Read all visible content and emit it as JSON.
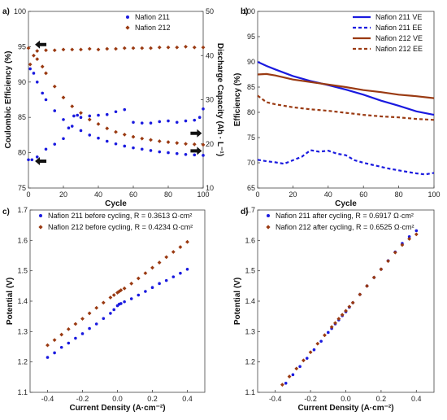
{
  "chart_data": [
    {
      "panel": "a)",
      "type": "scatter",
      "xlabel": "Cycle",
      "ylabel": "Coulombic Efficiency (%)",
      "y2label": "Discharge Capacity (Ah · L⁻¹)",
      "xlim": [
        0,
        100
      ],
      "ylim": [
        75,
        100
      ],
      "y2lim": [
        10,
        50
      ],
      "xticks": [
        "0",
        "20",
        "40",
        "60",
        "80",
        "100"
      ],
      "yticks": [
        "75",
        "80",
        "85",
        "90",
        "95",
        "100"
      ],
      "y2ticks": [
        "10",
        "20",
        "30",
        "40",
        "50"
      ],
      "legend_position": "top-right",
      "colors": {
        "Nafion 211": "#1a1adf",
        "Nafion 212": "#9a3a12"
      },
      "series": [
        {
          "name": "Nafion 211",
          "axis": "left",
          "x": [
            0,
            2,
            5,
            10,
            15,
            20,
            23,
            26,
            28,
            30,
            35,
            40,
            45,
            50,
            55,
            60,
            65,
            70,
            75,
            80,
            85,
            90,
            95,
            98,
            100
          ],
          "values": [
            79.0,
            79.0,
            79.4,
            80.5,
            81.2,
            82.0,
            83.5,
            85.2,
            85.3,
            85.0,
            85.2,
            85.3,
            85.4,
            85.8,
            86.1,
            84.3,
            84.2,
            84.2,
            84.4,
            84.5,
            84.3,
            84.5,
            84.6,
            85.0,
            86.2
          ]
        },
        {
          "name": "Nafion 211",
          "axis": "right",
          "x": [
            1,
            3,
            5,
            8,
            10,
            15,
            20,
            25,
            30,
            35,
            40,
            45,
            50,
            55,
            60,
            65,
            70,
            75,
            80,
            85,
            90,
            95,
            100
          ],
          "values": [
            37.0,
            36.0,
            34.0,
            31.5,
            30.0,
            27.5,
            25.5,
            24.0,
            23.0,
            22.0,
            21.3,
            20.6,
            20.0,
            19.5,
            19.1,
            18.8,
            18.5,
            18.2,
            18.0,
            17.8,
            17.6,
            17.5,
            17.4
          ]
        },
        {
          "name": "Nafion 212",
          "axis": "left",
          "x": [
            0,
            5,
            10,
            15,
            20,
            25,
            30,
            35,
            40,
            45,
            50,
            55,
            60,
            65,
            70,
            75,
            80,
            85,
            90,
            95,
            100
          ],
          "values": [
            94.8,
            94.4,
            94.5,
            94.5,
            94.6,
            94.6,
            94.6,
            94.7,
            94.6,
            94.7,
            94.7,
            94.8,
            94.8,
            94.8,
            94.8,
            94.9,
            94.9,
            94.9,
            95.0,
            94.9,
            94.9
          ]
        },
        {
          "name": "Nafion 212",
          "axis": "right",
          "x": [
            1,
            3,
            5,
            8,
            10,
            15,
            20,
            25,
            30,
            35,
            40,
            45,
            50,
            55,
            60,
            65,
            70,
            75,
            80,
            85,
            90,
            95,
            100
          ],
          "values": [
            38.0,
            40.0,
            39.2,
            37.5,
            36.0,
            33.0,
            30.5,
            28.5,
            27.0,
            25.5,
            24.5,
            23.5,
            22.7,
            22.1,
            21.6,
            21.2,
            20.9,
            20.6,
            20.4,
            20.2,
            20.0,
            19.9,
            19.8
          ]
        }
      ]
    },
    {
      "panel": "b)",
      "type": "line",
      "xlabel": "Cycle",
      "ylabel": "Efficiency (%)",
      "xlim": [
        0,
        100
      ],
      "ylim": [
        65,
        100
      ],
      "xticks": [
        "0",
        "20",
        "40",
        "60",
        "80",
        "100"
      ],
      "yticks": [
        "65",
        "70",
        "75",
        "80",
        "85",
        "90",
        "95",
        "100"
      ],
      "legend_position": "top-right",
      "series": [
        {
          "name": "Nafion 211 VE",
          "style": "solid",
          "color": "#1a1adf",
          "x": [
            0,
            5,
            10,
            20,
            30,
            40,
            50,
            60,
            70,
            80,
            90,
            100
          ],
          "values": [
            90.0,
            89.2,
            88.5,
            87.2,
            86.2,
            85.4,
            84.5,
            83.5,
            82.3,
            81.3,
            80.2,
            79.5
          ]
        },
        {
          "name": "Nafion 211 EE",
          "style": "dashed",
          "color": "#1a1adf",
          "x": [
            0,
            5,
            10,
            15,
            20,
            25,
            30,
            35,
            40,
            45,
            50,
            55,
            60,
            65,
            70,
            75,
            80,
            85,
            90,
            95,
            100
          ],
          "values": [
            70.6,
            70.3,
            70.1,
            69.8,
            70.5,
            71.2,
            72.5,
            72.2,
            72.4,
            71.8,
            71.5,
            70.5,
            70.0,
            69.6,
            69.2,
            68.8,
            68.5,
            68.2,
            67.9,
            67.7,
            68.0
          ]
        },
        {
          "name": "Nafion 212 VE",
          "style": "solid",
          "color": "#9a3a12",
          "x": [
            0,
            5,
            10,
            20,
            30,
            40,
            50,
            60,
            70,
            80,
            90,
            100
          ],
          "values": [
            87.5,
            87.6,
            87.3,
            86.5,
            86.0,
            85.5,
            85.0,
            84.4,
            84.0,
            83.5,
            83.2,
            82.8
          ]
        },
        {
          "name": "Nafion 212 EE",
          "style": "dashed",
          "color": "#9a3a12",
          "x": [
            0,
            5,
            10,
            20,
            30,
            40,
            50,
            60,
            70,
            80,
            90,
            100
          ],
          "values": [
            83.3,
            82.0,
            81.6,
            81.0,
            80.6,
            80.3,
            79.9,
            79.5,
            79.2,
            79.0,
            78.7,
            78.5
          ]
        }
      ]
    },
    {
      "panel": "c)",
      "type": "scatter",
      "xlabel": "Current Density (A·cm⁻²)",
      "ylabel": "Potential (V)",
      "xlim": [
        -0.5,
        0.5
      ],
      "ylim": [
        1.1,
        1.7
      ],
      "xticks": [
        "-0.4",
        "-0.2",
        "0.0",
        "0.2",
        "0.4"
      ],
      "yticks": [
        "1.1",
        "1.2",
        "1.3",
        "1.4",
        "1.5",
        "1.6",
        "1.7"
      ],
      "xtick_values": [
        -0.4,
        -0.2,
        0.0,
        0.2,
        0.4
      ],
      "legend_position": "top-left",
      "series": [
        {
          "name": "Nafion 211 before cycling, R = 0.3613 Ω·cm²",
          "marker": "circle",
          "color": "#1a1adf",
          "x": [
            -0.4,
            -0.36,
            -0.32,
            -0.28,
            -0.24,
            -0.2,
            -0.16,
            -0.12,
            -0.08,
            -0.04,
            -0.02,
            0.0,
            0.01,
            0.02,
            0.04,
            0.08,
            0.12,
            0.16,
            0.2,
            0.24,
            0.28,
            0.32,
            0.36,
            0.4
          ],
          "values": [
            1.215,
            1.23,
            1.248,
            1.262,
            1.278,
            1.293,
            1.31,
            1.325,
            1.343,
            1.36,
            1.372,
            1.385,
            1.39,
            1.392,
            1.398,
            1.408,
            1.42,
            1.432,
            1.445,
            1.458,
            1.468,
            1.48,
            1.492,
            1.505
          ]
        },
        {
          "name": "Nafion 212 before cycling, R = 0.4234 Ω·cm²",
          "marker": "diamond",
          "color": "#9a3a12",
          "x": [
            -0.4,
            -0.36,
            -0.32,
            -0.28,
            -0.24,
            -0.2,
            -0.16,
            -0.12,
            -0.08,
            -0.04,
            -0.02,
            0.0,
            0.01,
            0.02,
            0.04,
            0.08,
            0.12,
            0.16,
            0.2,
            0.24,
            0.28,
            0.32,
            0.36,
            0.4
          ],
          "values": [
            1.255,
            1.272,
            1.29,
            1.308,
            1.325,
            1.342,
            1.36,
            1.378,
            1.395,
            1.412,
            1.42,
            1.428,
            1.432,
            1.436,
            1.442,
            1.458,
            1.475,
            1.492,
            1.51,
            1.527,
            1.545,
            1.562,
            1.578,
            1.595
          ]
        }
      ]
    },
    {
      "panel": "d)",
      "type": "scatter",
      "xlabel": "Current Density (A·cm⁻²)",
      "ylabel": "Potential (V)",
      "xlim": [
        -0.5,
        0.5
      ],
      "ylim": [
        1.1,
        1.7
      ],
      "xticks": [
        "-0.4",
        "-0.2",
        "0.0",
        "0.2",
        "0.4"
      ],
      "yticks": [
        "1.1",
        "1.2",
        "1.3",
        "1.4",
        "1.5",
        "1.6",
        "1.7"
      ],
      "xtick_values": [
        -0.4,
        -0.2,
        0.0,
        0.2,
        0.4
      ],
      "legend_position": "top-left",
      "series": [
        {
          "name": "Nafion 211 after cycling, R = 0.6917 Ω·cm²",
          "marker": "circle",
          "color": "#1a1adf",
          "x": [
            -0.34,
            -0.3,
            -0.26,
            -0.22,
            -0.18,
            -0.14,
            -0.1,
            -0.08,
            -0.06,
            -0.04,
            -0.02,
            0.0,
            0.02,
            0.04,
            0.08,
            0.12,
            0.16,
            0.2,
            0.24,
            0.28,
            0.32,
            0.36,
            0.4
          ],
          "values": [
            1.13,
            1.158,
            1.185,
            1.212,
            1.24,
            1.268,
            1.297,
            1.31,
            1.325,
            1.338,
            1.352,
            1.365,
            1.38,
            1.395,
            1.422,
            1.45,
            1.478,
            1.505,
            1.533,
            1.562,
            1.59,
            1.612,
            1.632
          ]
        },
        {
          "name": "Nafion 212 after cycling, R = 0.6525 Ω·cm²",
          "marker": "diamond",
          "color": "#9a3a12",
          "x": [
            -0.36,
            -0.32,
            -0.28,
            -0.24,
            -0.2,
            -0.16,
            -0.12,
            -0.08,
            -0.06,
            -0.04,
            -0.02,
            0.0,
            0.02,
            0.04,
            0.08,
            0.12,
            0.16,
            0.2,
            0.24,
            0.28,
            0.32,
            0.36,
            0.4
          ],
          "values": [
            1.125,
            1.152,
            1.178,
            1.205,
            1.232,
            1.26,
            1.288,
            1.315,
            1.328,
            1.342,
            1.355,
            1.368,
            1.382,
            1.395,
            1.422,
            1.45,
            1.478,
            1.505,
            1.532,
            1.56,
            1.585,
            1.605,
            1.62
          ]
        }
      ]
    }
  ]
}
